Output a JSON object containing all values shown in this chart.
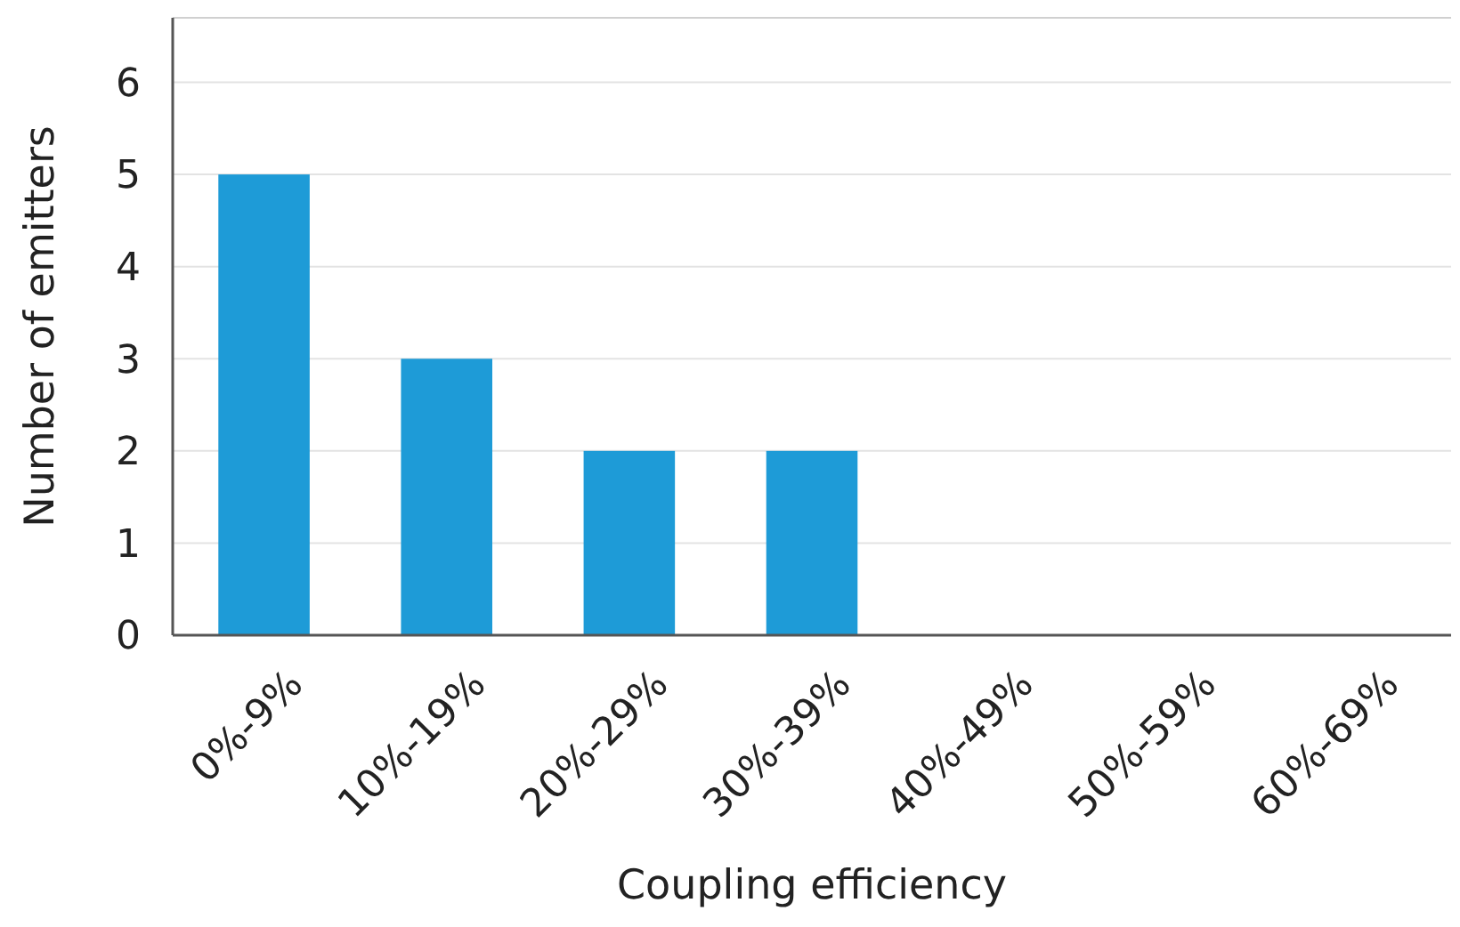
{
  "chart_data": {
    "type": "bar",
    "xlabel": "Coupling efficiency",
    "ylabel": "Number of emitters",
    "categories": [
      "0%-9%",
      "10%-19%",
      "20%-29%",
      "30%-39%",
      "40%-49%",
      "50%-59%",
      "60%-69%"
    ],
    "values": [
      5,
      3,
      2,
      2,
      0,
      0,
      0
    ],
    "color": "#1e9bd7",
    "ylim": [
      0,
      6.7
    ],
    "yticks": [
      0,
      1,
      2,
      3,
      4,
      5,
      6
    ],
    "grid": "y"
  }
}
